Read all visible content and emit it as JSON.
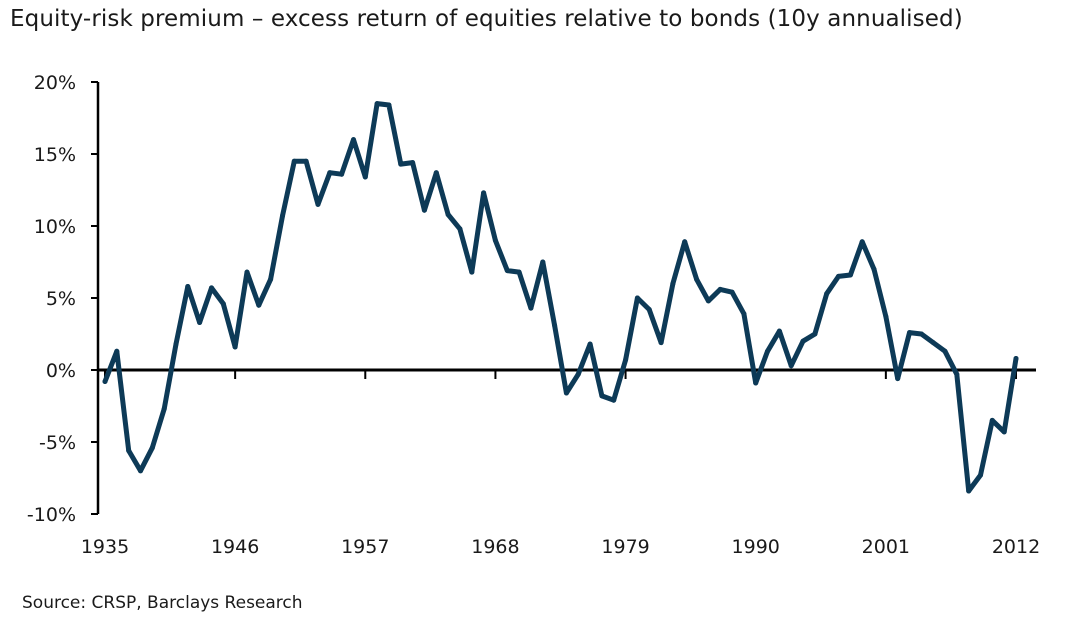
{
  "chart_data": {
    "type": "line",
    "title": "Equity-risk premium – excess return of equities relative to bonds (10y annualised)",
    "source": "Source: CRSP, Barclays Research",
    "xlabel": "",
    "ylabel": "",
    "x_ticks": [
      "1935",
      "1946",
      "1957",
      "1968",
      "1979",
      "1990",
      "2001",
      "2012"
    ],
    "y_ticks": [
      "20%",
      "15%",
      "10%",
      "5%",
      "0%",
      "-5%",
      "-10%"
    ],
    "ylim": [
      -10,
      20
    ],
    "xlim": [
      1934.5,
      2013.5
    ],
    "grid": false,
    "color": "#0d3a57",
    "series": [
      {
        "x": [
          1935,
          1936,
          1937,
          1938,
          1939,
          1940,
          1941,
          1942,
          1943,
          1944,
          1945,
          1946,
          1947,
          1948,
          1949,
          1950,
          1951,
          1952,
          1953,
          1954,
          1955,
          1956,
          1957,
          1958,
          1959,
          1960,
          1961,
          1962,
          1963,
          1964,
          1965,
          1966,
          1967,
          1968,
          1969,
          1970,
          1971,
          1972,
          1973,
          1974,
          1975,
          1976,
          1977,
          1978,
          1979,
          1980,
          1981,
          1982,
          1983,
          1984,
          1985,
          1986,
          1987,
          1988,
          1989,
          1990,
          1991,
          1992,
          1993,
          1994,
          1995,
          1996,
          1997,
          1998,
          1999,
          2000,
          2001,
          2002,
          2003,
          2004,
          2005,
          2006,
          2007,
          2008,
          2009,
          2010,
          2011,
          2012
        ],
        "values": [
          -0.8,
          1.3,
          -5.6,
          -7.0,
          -5.4,
          -2.7,
          1.8,
          5.8,
          3.3,
          5.7,
          4.6,
          1.6,
          6.8,
          4.5,
          6.3,
          10.7,
          14.5,
          14.5,
          11.5,
          13.7,
          13.6,
          16.0,
          13.4,
          18.5,
          18.4,
          14.3,
          14.4,
          11.1,
          13.7,
          10.8,
          9.8,
          6.8,
          12.3,
          9.0,
          6.9,
          6.8,
          4.3,
          7.5,
          3.1,
          -1.6,
          -0.3,
          1.8,
          -1.8,
          -2.1,
          0.7,
          5.0,
          4.2,
          1.9,
          6.0,
          8.9,
          6.3,
          4.8,
          5.6,
          5.4,
          3.9,
          -0.9,
          1.3,
          2.7,
          0.3,
          2.0,
          2.5,
          5.3,
          6.5,
          6.6,
          8.9,
          7.0,
          3.7,
          -0.6,
          2.6,
          2.5,
          1.9,
          1.3,
          -0.3,
          -8.4,
          -7.3,
          -3.5,
          -4.3,
          0.8
        ]
      }
    ]
  }
}
